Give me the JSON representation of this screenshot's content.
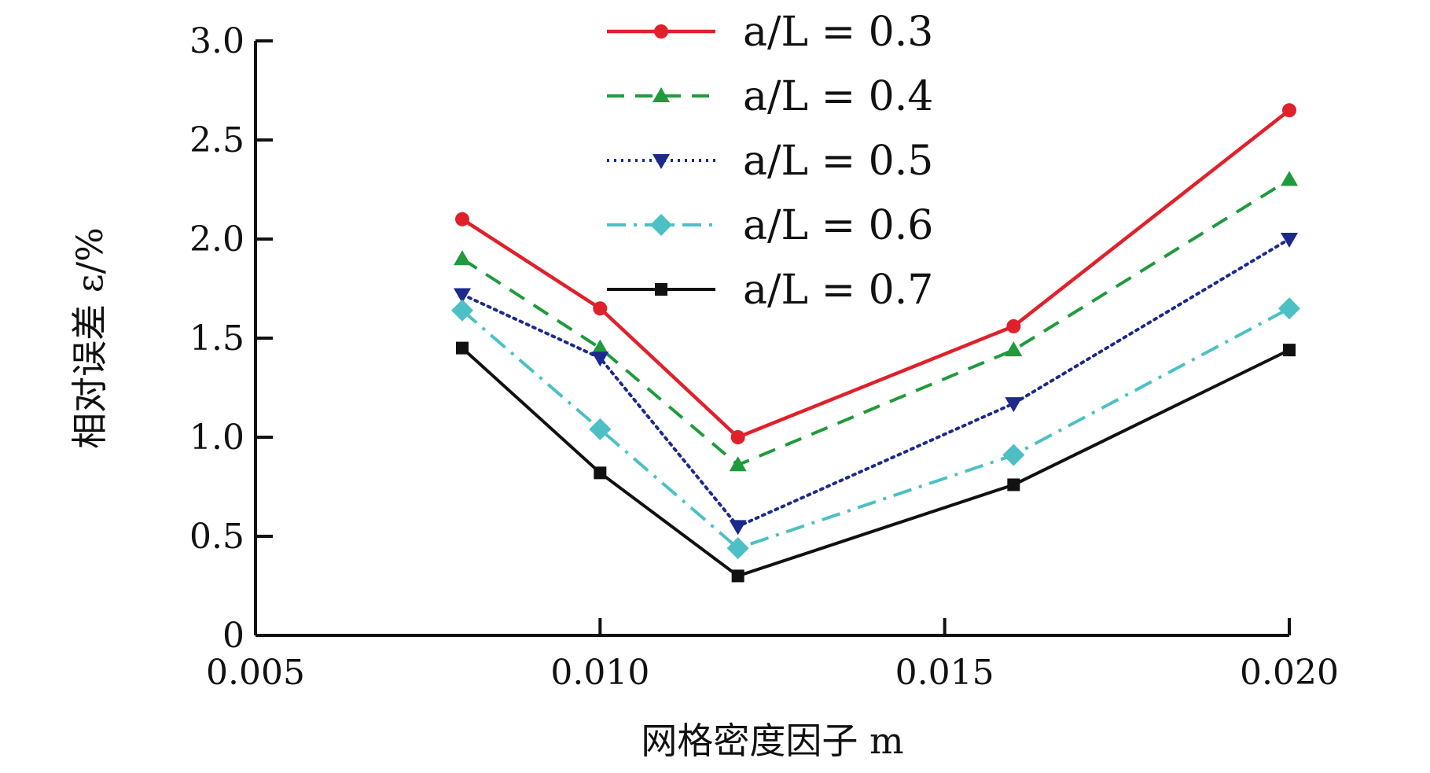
{
  "chart_data": {
    "type": "line",
    "title": "",
    "xlabel": "网格密度因子 m",
    "ylabel": "相对误差 ε/%",
    "xlim": [
      0.005,
      0.02
    ],
    "ylim": [
      0,
      3.0
    ],
    "x_ticks": [
      0.005,
      0.01,
      0.015,
      0.02
    ],
    "x_tick_labels": [
      "0.005",
      "0.010",
      "0.015",
      "0.020"
    ],
    "y_ticks": [
      0,
      0.5,
      1.0,
      1.5,
      2.0,
      2.5,
      3.0
    ],
    "y_tick_labels": [
      "0",
      "0.5",
      "1.0",
      "1.5",
      "2.0",
      "2.5",
      "3.0"
    ],
    "grid": false,
    "legend_position": "top-center",
    "x": [
      0.008,
      0.01,
      0.012,
      0.016,
      0.02
    ],
    "series": [
      {
        "name": "a/L = 0.3",
        "values": [
          2.1,
          1.65,
          1.0,
          1.56,
          2.65
        ],
        "color": "#e0202a",
        "marker": "circle",
        "dash": "solid"
      },
      {
        "name": "a/L = 0.4",
        "values": [
          1.9,
          1.45,
          0.86,
          1.44,
          2.3
        ],
        "color": "#1f9a3c",
        "marker": "triangle-up",
        "dash": "dashed"
      },
      {
        "name": "a/L = 0.5",
        "values": [
          1.72,
          1.4,
          0.55,
          1.17,
          2.0
        ],
        "color": "#1c2a8c",
        "marker": "triangle-down",
        "dash": "dotted"
      },
      {
        "name": "a/L = 0.6",
        "values": [
          1.64,
          1.04,
          0.44,
          0.91,
          1.65
        ],
        "color": "#4cc0c4",
        "marker": "diamond",
        "dash": "dashdot"
      },
      {
        "name": "a/L = 0.7",
        "values": [
          1.45,
          0.82,
          0.3,
          0.76,
          1.44
        ],
        "color": "#111111",
        "marker": "square",
        "dash": "solid"
      }
    ]
  }
}
